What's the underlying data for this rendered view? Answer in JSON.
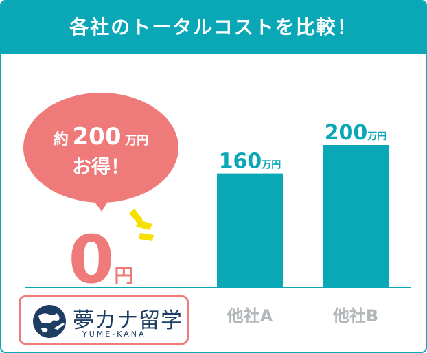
{
  "header": {
    "title": "各社のトータルコストを比較！"
  },
  "callout": {
    "prefix": "約",
    "amount": "200",
    "unit": "万円",
    "line2": "お得！"
  },
  "logo": {
    "name": "夢カナ留学",
    "romaji": "YUME-KANA"
  },
  "colors": {
    "accent": "#0aa7b7",
    "highlight": "#ee7a7a",
    "bar": "#0aa7b7",
    "category_text": "#b3b7b9",
    "logo_text": "#1e3d63",
    "spark": "#f5e000"
  },
  "chart_data": {
    "type": "bar",
    "title": "各社のトータルコストを比較！",
    "categories": [
      "夢カナ留学",
      "他社A",
      "他社B"
    ],
    "values": [
      0,
      160,
      200
    ],
    "value_labels": [
      {
        "number": "0",
        "unit": "円"
      },
      {
        "number": "160",
        "unit": "万円"
      },
      {
        "number": "200",
        "unit": "万円"
      }
    ],
    "unit": "万円",
    "ylim": [
      0,
      200
    ],
    "grid": false
  }
}
